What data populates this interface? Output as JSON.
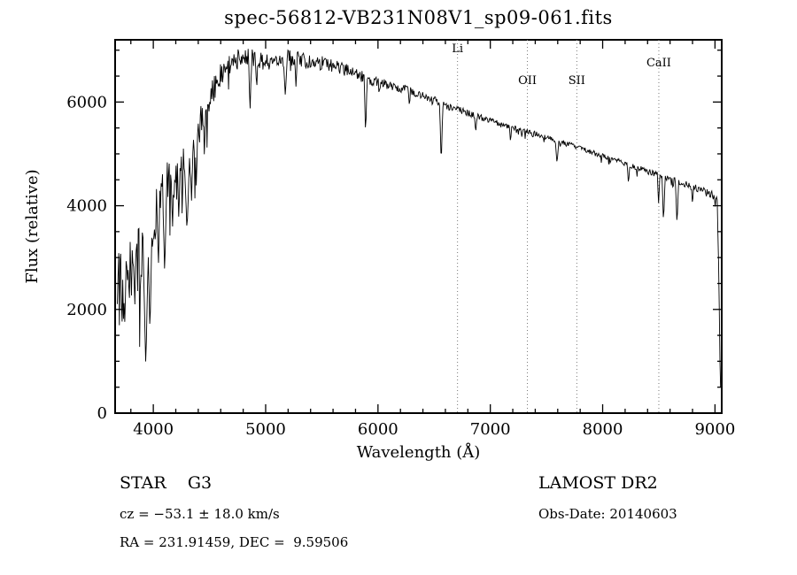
{
  "colors": {
    "background": "#ffffff",
    "foreground": "#000000",
    "marker_line": "#777777"
  },
  "chart_data": {
    "type": "line",
    "title": "spec-56812-VB231N08V1_sp09-061.fits",
    "xlabel": "Wavelength (Å)",
    "ylabel": "Flux (relative)",
    "xlim": [
      3660,
      9060
    ],
    "ylim": [
      0,
      7200
    ],
    "xticks": [
      4000,
      5000,
      6000,
      7000,
      8000,
      9000
    ],
    "yticks": [
      0,
      2000,
      4000,
      6000
    ],
    "x_minor_step": 200,
    "y_minor_step": 500,
    "grid": false,
    "legend": "none",
    "line_color": "#000000",
    "marker_color": "#777777",
    "marker_lines": [
      {
        "label": "Li",
        "wavelength": 6708,
        "label_dy": 14
      },
      {
        "label": "OII",
        "wavelength": 7330,
        "label_dy": 50
      },
      {
        "label": "SII",
        "wavelength": 7770,
        "label_dy": 50
      },
      {
        "label": "CaII",
        "wavelength": 8500,
        "label_dy": 30
      }
    ],
    "data_range": [
      3680,
      9055
    ],
    "sample_step": 6,
    "noise_seed": 20140603,
    "continuum": [
      [
        3680,
        2400
      ],
      [
        3750,
        2700
      ],
      [
        3800,
        2850
      ],
      [
        3850,
        3000
      ],
      [
        3900,
        3200
      ],
      [
        3950,
        3400
      ],
      [
        4000,
        3700
      ],
      [
        4100,
        4300
      ],
      [
        4200,
        4700
      ],
      [
        4300,
        5000
      ],
      [
        4400,
        5500
      ],
      [
        4500,
        6100
      ],
      [
        4600,
        6550
      ],
      [
        4700,
        6800
      ],
      [
        4800,
        6950
      ],
      [
        4900,
        6850
      ],
      [
        5000,
        6800
      ],
      [
        5100,
        6850
      ],
      [
        5200,
        6900
      ],
      [
        5300,
        6850
      ],
      [
        5400,
        6800
      ],
      [
        5500,
        6780
      ],
      [
        5600,
        6720
      ],
      [
        5700,
        6650
      ],
      [
        5800,
        6570
      ],
      [
        5900,
        6480
      ],
      [
        6000,
        6400
      ],
      [
        6200,
        6280
      ],
      [
        6400,
        6150
      ],
      [
        6600,
        5950
      ],
      [
        6800,
        5800
      ],
      [
        7000,
        5650
      ],
      [
        7200,
        5520
      ],
      [
        7400,
        5400
      ],
      [
        7600,
        5260
      ],
      [
        7800,
        5120
      ],
      [
        8000,
        4970
      ],
      [
        8200,
        4830
      ],
      [
        8400,
        4680
      ],
      [
        8600,
        4520
      ],
      [
        8800,
        4380
      ],
      [
        9000,
        4200
      ],
      [
        9020,
        4120
      ],
      [
        9035,
        2600
      ],
      [
        9045,
        900
      ],
      [
        9055,
        80
      ]
    ],
    "noise_amplitude": [
      [
        3680,
        800
      ],
      [
        3800,
        750
      ],
      [
        3900,
        700
      ],
      [
        4000,
        620
      ],
      [
        4150,
        550
      ],
      [
        4300,
        450
      ],
      [
        4450,
        330
      ],
      [
        4600,
        240
      ],
      [
        4800,
        190
      ],
      [
        5000,
        160
      ],
      [
        5300,
        150
      ],
      [
        5600,
        130
      ],
      [
        5900,
        110
      ],
      [
        6100,
        90
      ],
      [
        6400,
        75
      ],
      [
        6700,
        65
      ],
      [
        7000,
        55
      ],
      [
        7400,
        50
      ],
      [
        7800,
        50
      ],
      [
        8200,
        55
      ],
      [
        8600,
        60
      ],
      [
        9000,
        85
      ],
      [
        9055,
        60
      ]
    ],
    "absorption_features": [
      [
        3933,
        900,
        25
      ],
      [
        3970,
        1500,
        18
      ],
      [
        4045,
        2800,
        12
      ],
      [
        4101,
        2700,
        18
      ],
      [
        4172,
        3600,
        10
      ],
      [
        4227,
        3700,
        12
      ],
      [
        4300,
        3500,
        25
      ],
      [
        4340,
        4100,
        15
      ],
      [
        4383,
        4300,
        12
      ],
      [
        4455,
        4900,
        10
      ],
      [
        4861,
        5800,
        14
      ],
      [
        4920,
        6200,
        10
      ],
      [
        5175,
        6100,
        18
      ],
      [
        5270,
        6300,
        12
      ],
      [
        5890,
        5350,
        14
      ],
      [
        6280,
        5900,
        10
      ],
      [
        6563,
        4750,
        14
      ],
      [
        6870,
        5400,
        12
      ],
      [
        7180,
        5200,
        10
      ],
      [
        7594,
        4800,
        16
      ],
      [
        8230,
        4400,
        12
      ],
      [
        8498,
        4050,
        12
      ],
      [
        8542,
        3650,
        14
      ],
      [
        8662,
        3600,
        14
      ],
      [
        8800,
        4000,
        10
      ]
    ]
  },
  "footer": {
    "class_line": "STAR    G3",
    "survey": "LAMOST DR2",
    "velocity": "cz = −53.1 ± 18.0 km/s",
    "obs_date": "Obs-Date: 20140603",
    "coordinates": "RA = 231.91459, DEC =  9.59506"
  }
}
